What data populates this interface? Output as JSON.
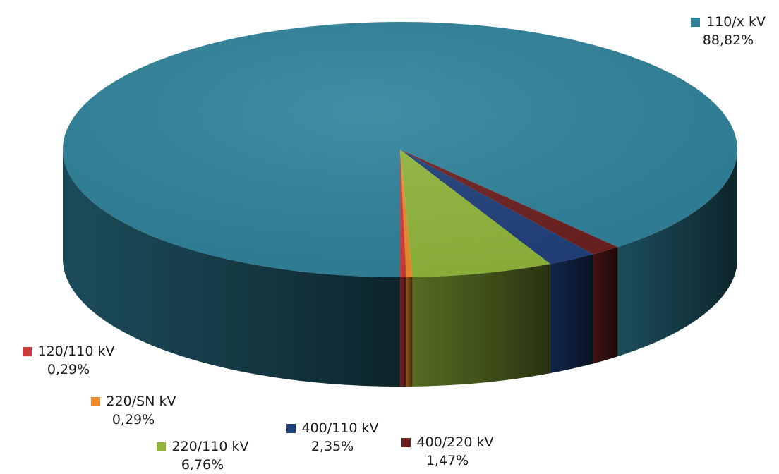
{
  "chart_data": {
    "type": "pie",
    "title": "",
    "style": "3d",
    "slices": [
      {
        "label": "110/x kV",
        "value_text": "88,82%",
        "value": 88.82,
        "color": "#2e8199"
      },
      {
        "label": "400/220 kV",
        "value_text": "1,47%",
        "value": 1.47,
        "color": "#6b1f1f"
      },
      {
        "label": "400/110 kV",
        "value_text": "2,35%",
        "value": 2.35,
        "color": "#1f3f7a"
      },
      {
        "label": "220/110 kV",
        "value_text": "6,76%",
        "value": 6.76,
        "color": "#90b53a"
      },
      {
        "label": "220/SN kV",
        "value_text": "0,29%",
        "value": 0.29,
        "color": "#f08a2c"
      },
      {
        "label": "120/110 kV",
        "value_text": "0,29%",
        "value": 0.29,
        "color": "#cc3c3c"
      }
    ]
  }
}
